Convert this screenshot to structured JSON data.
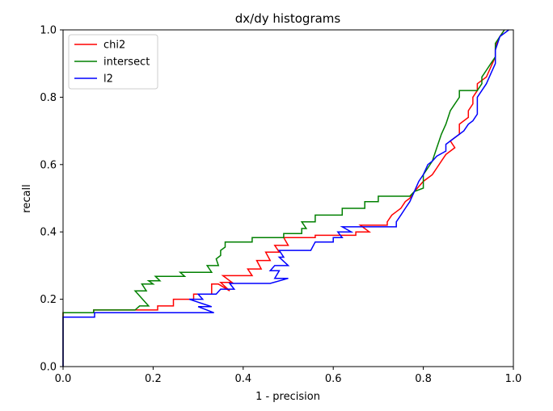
{
  "chart_data": {
    "type": "line",
    "title": "dx/dy histograms",
    "xlabel": "1 - precision",
    "ylabel": "recall",
    "xlim": [
      0.0,
      1.0
    ],
    "ylim": [
      0.0,
      1.0
    ],
    "xticks": [
      "0.0",
      "0.2",
      "0.4",
      "0.6",
      "0.8",
      "1.0"
    ],
    "yticks": [
      "0.0",
      "0.2",
      "0.4",
      "0.6",
      "0.8",
      "1.0"
    ],
    "grid": false,
    "legend_position": "upper-left",
    "series": [
      {
        "name": "chi2",
        "color": "#ff0000",
        "points": [
          [
            0.0,
            0.0
          ],
          [
            0.0,
            0.16
          ],
          [
            0.068,
            0.16
          ],
          [
            0.068,
            0.168
          ],
          [
            0.21,
            0.168
          ],
          [
            0.21,
            0.18
          ],
          [
            0.245,
            0.18
          ],
          [
            0.245,
            0.2
          ],
          [
            0.29,
            0.2
          ],
          [
            0.29,
            0.215
          ],
          [
            0.33,
            0.215
          ],
          [
            0.33,
            0.245
          ],
          [
            0.345,
            0.245
          ],
          [
            0.37,
            0.225
          ],
          [
            0.35,
            0.25
          ],
          [
            0.375,
            0.25
          ],
          [
            0.355,
            0.27
          ],
          [
            0.42,
            0.27
          ],
          [
            0.41,
            0.29
          ],
          [
            0.44,
            0.29
          ],
          [
            0.43,
            0.315
          ],
          [
            0.46,
            0.315
          ],
          [
            0.45,
            0.34
          ],
          [
            0.48,
            0.34
          ],
          [
            0.47,
            0.36
          ],
          [
            0.5,
            0.36
          ],
          [
            0.49,
            0.383
          ],
          [
            0.56,
            0.383
          ],
          [
            0.56,
            0.39
          ],
          [
            0.65,
            0.39
          ],
          [
            0.65,
            0.4
          ],
          [
            0.68,
            0.4
          ],
          [
            0.66,
            0.42
          ],
          [
            0.72,
            0.42
          ],
          [
            0.72,
            0.43
          ],
          [
            0.73,
            0.45
          ],
          [
            0.74,
            0.46
          ],
          [
            0.75,
            0.47
          ],
          [
            0.76,
            0.49
          ],
          [
            0.77,
            0.5
          ],
          [
            0.78,
            0.52
          ],
          [
            0.8,
            0.55
          ],
          [
            0.82,
            0.57
          ],
          [
            0.83,
            0.59
          ],
          [
            0.84,
            0.61
          ],
          [
            0.85,
            0.63
          ],
          [
            0.87,
            0.65
          ],
          [
            0.86,
            0.67
          ],
          [
            0.88,
            0.69
          ],
          [
            0.88,
            0.72
          ],
          [
            0.9,
            0.74
          ],
          [
            0.9,
            0.76
          ],
          [
            0.91,
            0.78
          ],
          [
            0.91,
            0.8
          ],
          [
            0.92,
            0.82
          ],
          [
            0.92,
            0.84
          ],
          [
            0.94,
            0.86
          ],
          [
            0.95,
            0.89
          ],
          [
            0.96,
            0.92
          ],
          [
            0.96,
            0.95
          ],
          [
            0.97,
            0.98
          ],
          [
            0.98,
            1.0
          ]
        ]
      },
      {
        "name": "intersect",
        "color": "#008000",
        "points": [
          [
            0.0,
            0.0
          ],
          [
            0.0,
            0.16
          ],
          [
            0.068,
            0.16
          ],
          [
            0.068,
            0.168
          ],
          [
            0.16,
            0.168
          ],
          [
            0.17,
            0.18
          ],
          [
            0.19,
            0.18
          ],
          [
            0.16,
            0.225
          ],
          [
            0.185,
            0.225
          ],
          [
            0.175,
            0.245
          ],
          [
            0.2,
            0.245
          ],
          [
            0.19,
            0.255
          ],
          [
            0.215,
            0.255
          ],
          [
            0.205,
            0.268
          ],
          [
            0.27,
            0.268
          ],
          [
            0.26,
            0.28
          ],
          [
            0.33,
            0.28
          ],
          [
            0.32,
            0.3
          ],
          [
            0.345,
            0.3
          ],
          [
            0.34,
            0.32
          ],
          [
            0.35,
            0.33
          ],
          [
            0.35,
            0.345
          ],
          [
            0.36,
            0.355
          ],
          [
            0.36,
            0.37
          ],
          [
            0.42,
            0.37
          ],
          [
            0.42,
            0.383
          ],
          [
            0.49,
            0.383
          ],
          [
            0.49,
            0.395
          ],
          [
            0.53,
            0.395
          ],
          [
            0.53,
            0.41
          ],
          [
            0.54,
            0.41
          ],
          [
            0.53,
            0.43
          ],
          [
            0.56,
            0.43
          ],
          [
            0.56,
            0.45
          ],
          [
            0.62,
            0.45
          ],
          [
            0.62,
            0.47
          ],
          [
            0.67,
            0.47
          ],
          [
            0.67,
            0.49
          ],
          [
            0.7,
            0.49
          ],
          [
            0.7,
            0.506
          ],
          [
            0.77,
            0.506
          ],
          [
            0.78,
            0.52
          ],
          [
            0.8,
            0.53
          ],
          [
            0.8,
            0.57
          ],
          [
            0.81,
            0.59
          ],
          [
            0.82,
            0.61
          ],
          [
            0.83,
            0.65
          ],
          [
            0.84,
            0.69
          ],
          [
            0.85,
            0.72
          ],
          [
            0.86,
            0.76
          ],
          [
            0.87,
            0.78
          ],
          [
            0.88,
            0.8
          ],
          [
            0.88,
            0.82
          ],
          [
            0.92,
            0.82
          ],
          [
            0.93,
            0.84
          ],
          [
            0.93,
            0.86
          ],
          [
            0.94,
            0.88
          ],
          [
            0.95,
            0.9
          ],
          [
            0.96,
            0.92
          ],
          [
            0.96,
            0.96
          ],
          [
            0.97,
            0.98
          ],
          [
            0.98,
            1.0
          ]
        ]
      },
      {
        "name": "l2",
        "color": "#0000ff",
        "points": [
          [
            0.0,
            0.0
          ],
          [
            0.0,
            0.147
          ],
          [
            0.07,
            0.147
          ],
          [
            0.07,
            0.16
          ],
          [
            0.335,
            0.16
          ],
          [
            0.3,
            0.178
          ],
          [
            0.33,
            0.178
          ],
          [
            0.28,
            0.2
          ],
          [
            0.31,
            0.2
          ],
          [
            0.3,
            0.215
          ],
          [
            0.34,
            0.215
          ],
          [
            0.35,
            0.23
          ],
          [
            0.38,
            0.23
          ],
          [
            0.37,
            0.247
          ],
          [
            0.46,
            0.247
          ],
          [
            0.5,
            0.262
          ],
          [
            0.47,
            0.262
          ],
          [
            0.48,
            0.285
          ],
          [
            0.46,
            0.285
          ],
          [
            0.47,
            0.3
          ],
          [
            0.5,
            0.3
          ],
          [
            0.48,
            0.325
          ],
          [
            0.49,
            0.325
          ],
          [
            0.48,
            0.345
          ],
          [
            0.55,
            0.345
          ],
          [
            0.56,
            0.37
          ],
          [
            0.6,
            0.37
          ],
          [
            0.6,
            0.383
          ],
          [
            0.62,
            0.383
          ],
          [
            0.61,
            0.4
          ],
          [
            0.64,
            0.4
          ],
          [
            0.62,
            0.415
          ],
          [
            0.74,
            0.415
          ],
          [
            0.74,
            0.43
          ],
          [
            0.75,
            0.45
          ],
          [
            0.76,
            0.47
          ],
          [
            0.77,
            0.49
          ],
          [
            0.78,
            0.52
          ],
          [
            0.79,
            0.55
          ],
          [
            0.8,
            0.57
          ],
          [
            0.81,
            0.6
          ],
          [
            0.82,
            0.61
          ],
          [
            0.83,
            0.625
          ],
          [
            0.85,
            0.64
          ],
          [
            0.85,
            0.66
          ],
          [
            0.87,
            0.68
          ],
          [
            0.89,
            0.7
          ],
          [
            0.9,
            0.72
          ],
          [
            0.91,
            0.73
          ],
          [
            0.92,
            0.75
          ],
          [
            0.92,
            0.8
          ],
          [
            0.94,
            0.84
          ],
          [
            0.95,
            0.87
          ],
          [
            0.96,
            0.9
          ],
          [
            0.96,
            0.94
          ],
          [
            0.97,
            0.98
          ],
          [
            0.99,
            1.0
          ]
        ]
      }
    ]
  }
}
